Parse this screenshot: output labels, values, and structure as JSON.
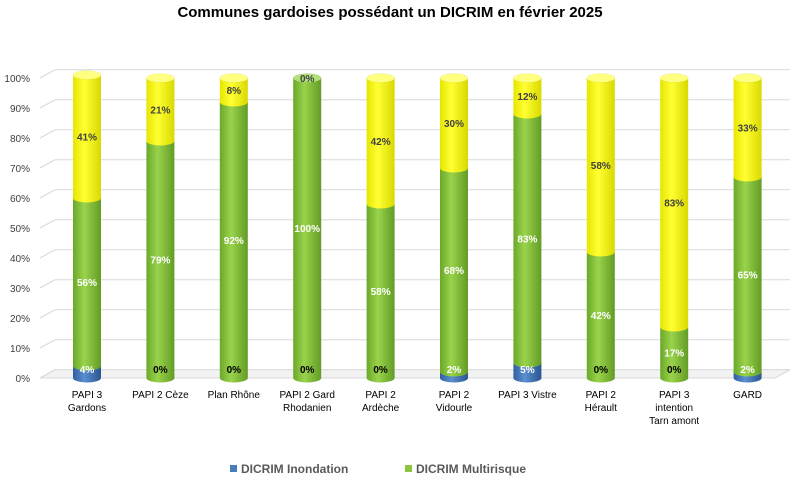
{
  "chart_data": {
    "type": "bar",
    "stacked": true,
    "percent": true,
    "title": "Communes gardoises possédant un DICRIM en février 2025",
    "categories": [
      [
        "PAPI 3",
        "Gardons"
      ],
      [
        "PAPI 2 Cèze"
      ],
      [
        "Plan Rhône"
      ],
      [
        "PAPI 2 Gard",
        "Rhodanien"
      ],
      [
        "PAPI 2",
        "Ardèche"
      ],
      [
        "PAPI 2",
        "Vidourle"
      ],
      [
        "PAPI 3 Vistre"
      ],
      [
        "PAPI 2",
        "Hérault"
      ],
      [
        "PAPI 3",
        "intention",
        "Tarn amont"
      ],
      [
        "GARD"
      ]
    ],
    "series": [
      {
        "name": "DICRIM Inondation",
        "color": "#4a7ebb",
        "values": [
          4,
          0,
          0,
          0,
          0,
          2,
          5,
          0,
          0,
          2
        ]
      },
      {
        "name": "DICRIM Multirisque",
        "color": "#8cc63f",
        "values": [
          56,
          79,
          92,
          100,
          58,
          68,
          83,
          42,
          17,
          65
        ]
      },
      {
        "name": "",
        "color": "#ffff00",
        "values": [
          41,
          21,
          8,
          0,
          42,
          30,
          12,
          58,
          83,
          33
        ]
      }
    ],
    "ylim": [
      0,
      100
    ],
    "yticks": [
      "0%",
      "10%",
      "20%",
      "30%",
      "40%",
      "50%",
      "60%",
      "70%",
      "80%",
      "90%",
      "100%"
    ],
    "grid": true,
    "legend_position": "bottom"
  }
}
